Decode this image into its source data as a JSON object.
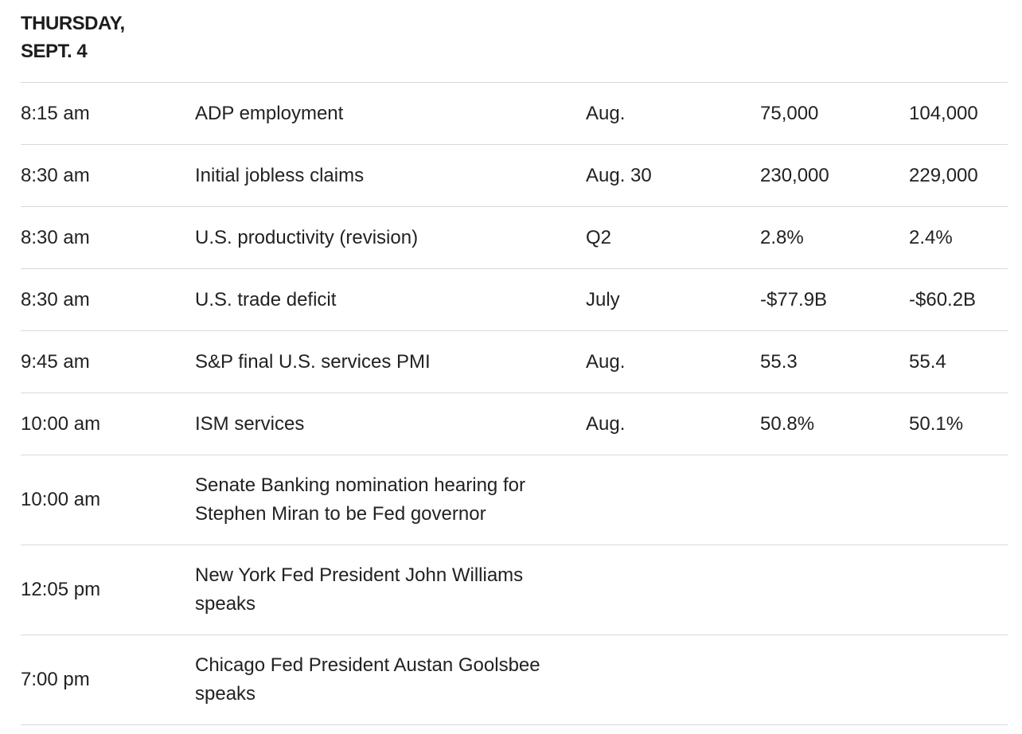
{
  "day": {
    "line1": "THURSDAY,",
    "line2": "SEPT. 4"
  },
  "rows": [
    {
      "time": "8:15 am",
      "event": "ADP employment",
      "period": "Aug.",
      "forecast": "75,000",
      "previous": "104,000"
    },
    {
      "time": "8:30 am",
      "event": "Initial jobless claims",
      "period": "Aug. 30",
      "forecast": "230,000",
      "previous": "229,000"
    },
    {
      "time": "8:30 am",
      "event": "U.S. productivity (revision)",
      "period": "Q2",
      "forecast": "2.8%",
      "previous": "2.4%"
    },
    {
      "time": "8:30 am",
      "event": "U.S. trade deficit",
      "period": "July",
      "forecast": "-$77.9B",
      "previous": "-$60.2B"
    },
    {
      "time": "9:45 am",
      "event": "S&P final U.S. services PMI",
      "period": "Aug.",
      "forecast": "55.3",
      "previous": "55.4"
    },
    {
      "time": "10:00 am",
      "event": "ISM services",
      "period": "Aug.",
      "forecast": "50.8%",
      "previous": "50.1%"
    },
    {
      "time": "10:00 am",
      "event": "Senate Banking nomination hearing for Stephen Miran to be Fed governor",
      "period": "",
      "forecast": "",
      "previous": ""
    },
    {
      "time": "12:05 pm",
      "event": "New York Fed President John Williams speaks",
      "period": "",
      "forecast": "",
      "previous": ""
    },
    {
      "time": "7:00 pm",
      "event": "Chicago Fed President Austan Goolsbee speaks",
      "period": "",
      "forecast": "",
      "previous": ""
    }
  ]
}
